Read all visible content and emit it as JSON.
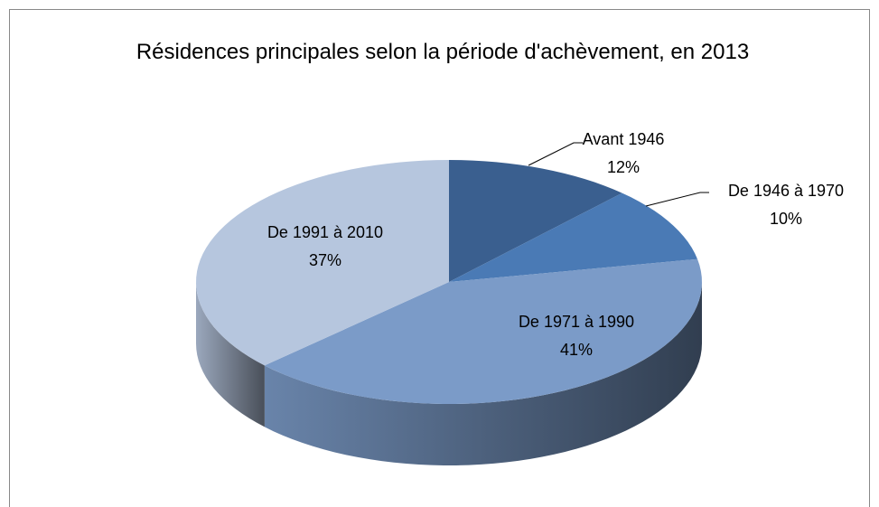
{
  "chart_data": {
    "type": "pie",
    "title": "Résidences principales selon la période d'achèvement, en 2013",
    "categories": [
      "Avant 1946",
      "De 1946 à 1970",
      "De 1971 à 1990",
      "De 1991 à 2010"
    ],
    "values": [
      12,
      10,
      41,
      37
    ],
    "value_labels": [
      "12%",
      "10%",
      "41%",
      "37%"
    ],
    "colors": [
      "#3a5f8f",
      "#4a7ab5",
      "#7b9bc8",
      "#b6c6de"
    ]
  }
}
